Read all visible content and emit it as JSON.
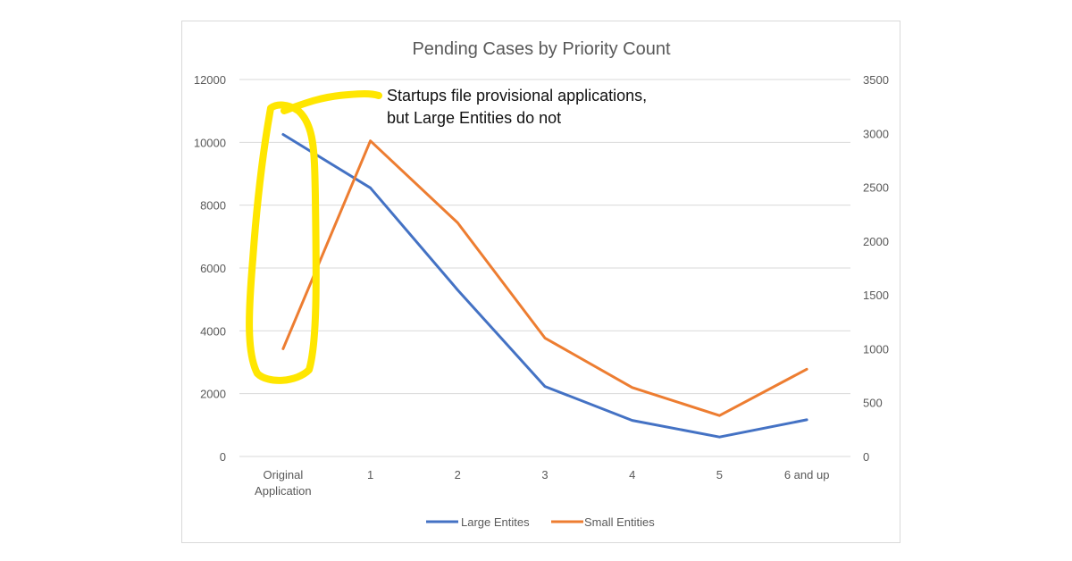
{
  "chart_data": {
    "type": "line",
    "title": "Pending Cases by Priority Count",
    "categories": [
      [
        "Original",
        "Application"
      ],
      [
        "1"
      ],
      [
        "2"
      ],
      [
        "3"
      ],
      [
        "4"
      ],
      [
        "5"
      ],
      [
        "6 and up"
      ]
    ],
    "series": [
      {
        "name": "Large Entites",
        "axis": "left",
        "color": "#4472C4",
        "values": [
          10250,
          8550,
          5300,
          2230,
          1150,
          620,
          1170
        ]
      },
      {
        "name": "Small Entities",
        "axis": "right",
        "color": "#ED7D31",
        "values": [
          1000,
          2930,
          2170,
          1100,
          640,
          380,
          810
        ]
      }
    ],
    "y_left": {
      "min": 0,
      "max": 12000,
      "ticks": [
        "0",
        "2000",
        "4000",
        "6000",
        "8000",
        "10000",
        "12000"
      ]
    },
    "y_right": {
      "min": 0,
      "max": 3500,
      "ticks": [
        "0",
        "500",
        "1000",
        "1500",
        "2000",
        "2500",
        "3000",
        "3500"
      ]
    },
    "grid": "horizontal",
    "legend_position": "bottom",
    "annotation": {
      "lines": [
        "Startups file provisional applications,",
        "but Large Entities do not"
      ],
      "highlight_color": "#FFE600",
      "highlights_category": "Original Application"
    }
  }
}
